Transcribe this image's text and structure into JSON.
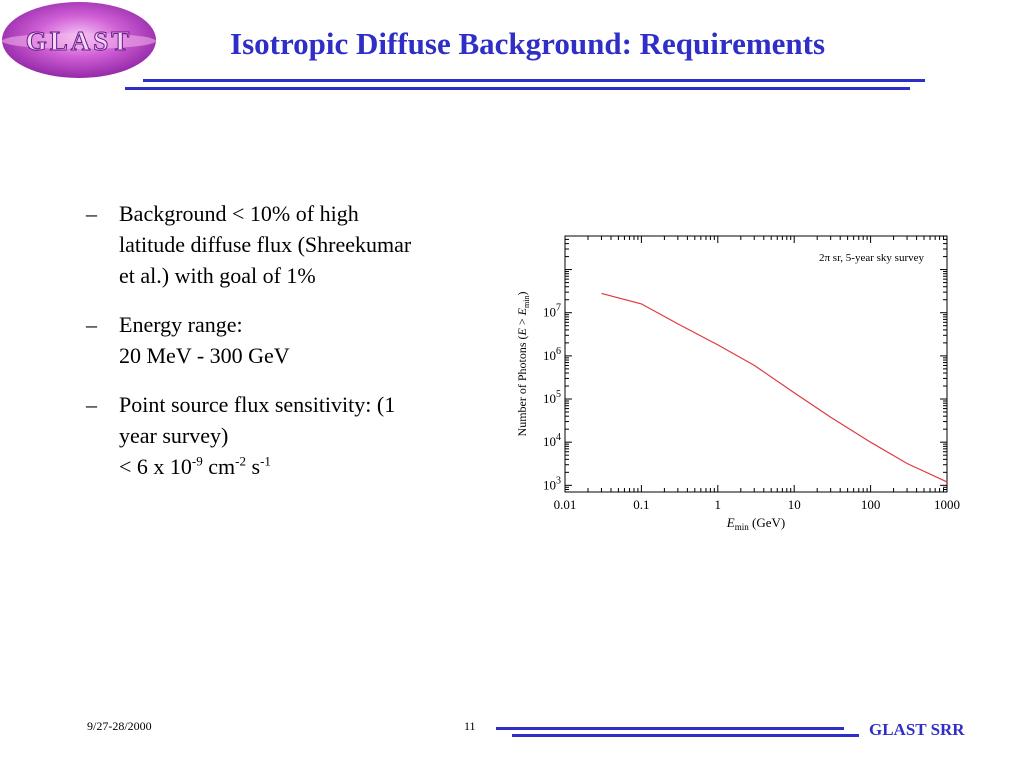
{
  "logo": {
    "text": "GLAST"
  },
  "slide": {
    "title": "Isotropic Diffuse Background: Requirements"
  },
  "bullets": [
    {
      "dash": "–",
      "lines": [
        "Background < 10% of high",
        "latitude diffuse flux (Shreekumar",
        "et al.) with goal of 1%"
      ]
    },
    {
      "dash": "–",
      "lines": [
        "Energy range:",
        "20 MeV - 300 GeV"
      ]
    },
    {
      "dash": "–",
      "lines": [
        "Point source flux sensitivity: (1",
        "year survey)"
      ],
      "formula": {
        "lt": "< 6 x 10",
        "exp1": "-9",
        "cm": " cm",
        "exp2": "-2",
        "s": " s",
        "exp3": "-1"
      }
    }
  ],
  "chart_data": {
    "type": "line",
    "annotation": "2π sr, 5-year sky survey",
    "xlabel": {
      "main": "E",
      "sub": "min",
      "rest": " (GeV)"
    },
    "ylabel": {
      "pre": "Number of Photons (",
      "e1": "E",
      "gt": " > ",
      "e2": "E",
      "sub": "min",
      "post": ")"
    },
    "xscale": "log",
    "yscale": "log",
    "xlim": [
      0.01,
      1000
    ],
    "ylim": [
      700,
      600000000
    ],
    "x_ticks": [
      0.01,
      0.1,
      1,
      10,
      100,
      1000
    ],
    "x_tick_labels": [
      "0.01",
      "0.1",
      "1",
      "10",
      "100",
      "1000"
    ],
    "y_ticks": [
      1000,
      10000,
      100000,
      1000000,
      10000000
    ],
    "y_tick_labels": [
      {
        "base": "10",
        "exp": "3"
      },
      {
        "base": "10",
        "exp": "4"
      },
      {
        "base": "10",
        "exp": "5"
      },
      {
        "base": "10",
        "exp": "6"
      },
      {
        "base": "10",
        "exp": "7"
      }
    ],
    "grid": false,
    "series": [
      {
        "color": "#e0393e",
        "x": [
          0.03,
          0.1,
          0.3,
          1,
          3,
          10,
          30,
          100,
          300,
          1000
        ],
        "y": [
          28000000,
          16000000,
          5500000,
          1800000,
          600000,
          140000,
          38000,
          10000,
          3200,
          1200
        ]
      }
    ]
  },
  "footer": {
    "date": "9/27-28/2000",
    "page": "11",
    "brand": "GLAST SRR"
  }
}
